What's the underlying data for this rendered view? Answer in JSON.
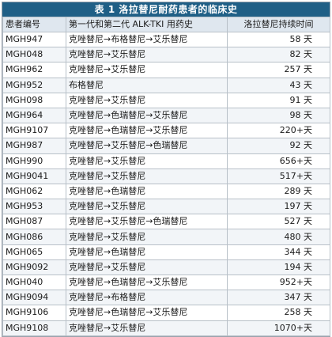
{
  "title": "表 1  洛拉替尼耐药患者的临床史",
  "headers": {
    "patient_id": "患者编号",
    "history": "第一代和第二代 ALK-TKI 用药史",
    "duration": "洛拉替尼持续时间"
  },
  "rows": [
    {
      "id": "MGH947",
      "history": "克唑替尼→布格替尼→艾乐替尼",
      "duration": "58 天"
    },
    {
      "id": "MGH048",
      "history": "克唑替尼→艾乐替尼",
      "duration": "82 天"
    },
    {
      "id": "MGH962",
      "history": "克唑替尼→艾乐替尼",
      "duration": "257 天"
    },
    {
      "id": "MGH952",
      "history": "布格替尼",
      "duration": "43 天"
    },
    {
      "id": "MGH098",
      "history": "克唑替尼→艾乐替尼",
      "duration": "91 天"
    },
    {
      "id": "MGH964",
      "history": "克唑替尼→色瑞替尼→艾乐替尼",
      "duration": "98 天"
    },
    {
      "id": "MGH9107",
      "history": "克唑替尼→色瑞替尼→艾乐替尼",
      "duration": "220+天"
    },
    {
      "id": "MGH987",
      "history": "克唑替尼→艾乐替尼→色瑞替尼",
      "duration": "92 天"
    },
    {
      "id": "MGH990",
      "history": "克唑替尼→艾乐替尼",
      "duration": "656+天"
    },
    {
      "id": "MGH9041",
      "history": "克唑替尼→艾乐替尼",
      "duration": "517+天"
    },
    {
      "id": "MGH062",
      "history": "克唑替尼→色瑞替尼",
      "duration": "289 天"
    },
    {
      "id": "MGH953",
      "history": "克唑替尼→艾乐替尼",
      "duration": "197 天"
    },
    {
      "id": "MGH087",
      "history": "克唑替尼→艾乐替尼→色瑞替尼",
      "duration": "527 天"
    },
    {
      "id": "MGH086",
      "history": "克唑替尼→艾乐替尼",
      "duration": "480 天"
    },
    {
      "id": "MGH065",
      "history": "克唑替尼→色瑞替尼",
      "duration": "344 天"
    },
    {
      "id": "MGH9092",
      "history": "克唑替尼→艾乐替尼",
      "duration": "194 天"
    },
    {
      "id": "MGH040",
      "history": "克唑替尼→色瑞替尼→艾乐替尼",
      "duration": "952+天"
    },
    {
      "id": "MGH9094",
      "history": "克唑替尼→布格替尼",
      "duration": "347 天"
    },
    {
      "id": "MGH9106",
      "history": "克唑替尼→色瑞替尼→艾乐替尼",
      "duration": "258 天"
    },
    {
      "id": "MGH9108",
      "history": "克唑替尼→艾乐替尼",
      "duration": "1070+天"
    }
  ]
}
